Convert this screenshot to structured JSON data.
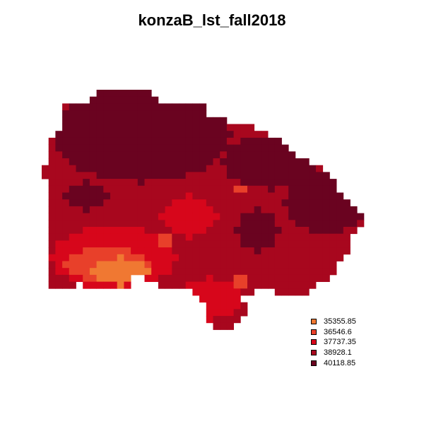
{
  "title": "konzaB_lst_fall2018",
  "legend": {
    "items": [
      {
        "label": "35355.85",
        "color": "#F07832"
      },
      {
        "label": "36546.6",
        "color": "#E8402A"
      },
      {
        "label": "37737.35",
        "color": "#D7061B"
      },
      {
        "label": "38928.1",
        "color": "#A8071E"
      },
      {
        "label": "40118.85",
        "color": "#6A0320"
      }
    ]
  },
  "chart_data": {
    "type": "heatmap",
    "title": "konzaB_lst_fall2018",
    "legend_values": [
      35355.85,
      36546.6,
      37737.35,
      38928.1,
      40118.85
    ],
    "colors": [
      "#F07832",
      "#E8402A",
      "#D7061B",
      "#A8071E",
      "#6A0320"
    ],
    "legend_position": "bottom-right"
  }
}
